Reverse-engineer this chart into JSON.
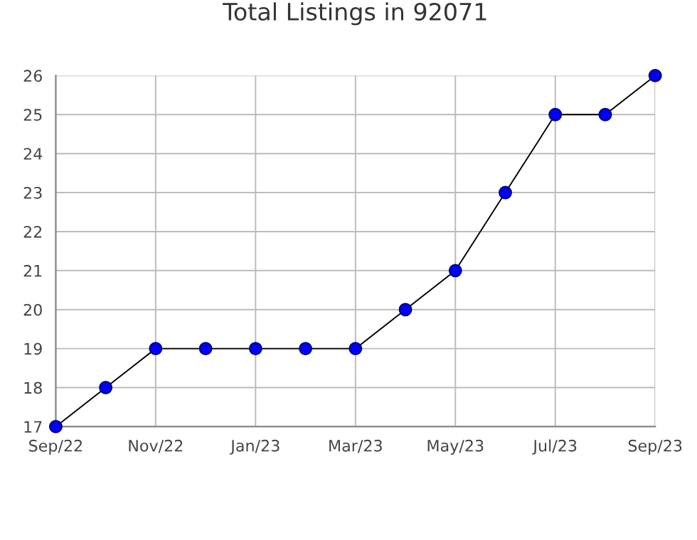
{
  "chart_data": {
    "type": "line",
    "title": "Total Listings in 92071",
    "categories": [
      "Sep/22",
      null,
      "Nov/22",
      null,
      "Jan/23",
      null,
      "Mar/23",
      null,
      "May/23",
      null,
      "Jul/23",
      null,
      "Sep/23"
    ],
    "series": [
      {
        "color": "#0000ff",
        "values": [
          17,
          18,
          19,
          19,
          19,
          19,
          19,
          20,
          21,
          23,
          25,
          25,
          26
        ]
      }
    ],
    "ylim": [
      17,
      26
    ],
    "yticks": [
      17,
      18,
      19,
      20,
      21,
      22,
      23,
      24,
      25,
      26
    ],
    "grid": true,
    "marker": "circle",
    "line_style": "solid"
  }
}
